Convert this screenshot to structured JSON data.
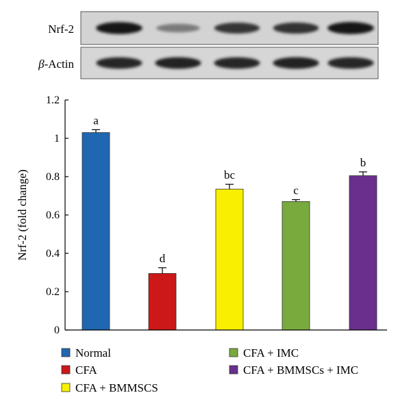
{
  "blot": {
    "rows": [
      {
        "label": "Nrf-2",
        "intensity": [
          0.95,
          0.45,
          0.8,
          0.82,
          0.97
        ]
      },
      {
        "label_symbol": "β",
        "label_suffix": "-Actin",
        "intensity": [
          0.88,
          0.9,
          0.88,
          0.9,
          0.88
        ]
      }
    ]
  },
  "chart_data": {
    "type": "bar",
    "categories": [
      "Normal",
      "CFA",
      "CFA + BMMSCS",
      "CFA + IMC",
      "CFA + BMMSCs + IMC"
    ],
    "values": [
      1.03,
      0.295,
      0.735,
      0.67,
      0.805
    ],
    "errors": [
      0.015,
      0.03,
      0.025,
      0.01,
      0.02
    ],
    "significance_labels": [
      "a",
      "d",
      "bc",
      "c",
      "b"
    ],
    "colors": [
      "#2166b0",
      "#cc1818",
      "#f8f000",
      "#79aa3e",
      "#6a2f8c"
    ],
    "ylabel": "Nrf-2 (fold change)",
    "ylim": [
      0,
      1.2
    ],
    "yticks": [
      "0",
      "0.2",
      "0.4",
      "0.6",
      "0.8",
      "1",
      "1.2"
    ],
    "grid": false,
    "legend_position": "bottom"
  }
}
